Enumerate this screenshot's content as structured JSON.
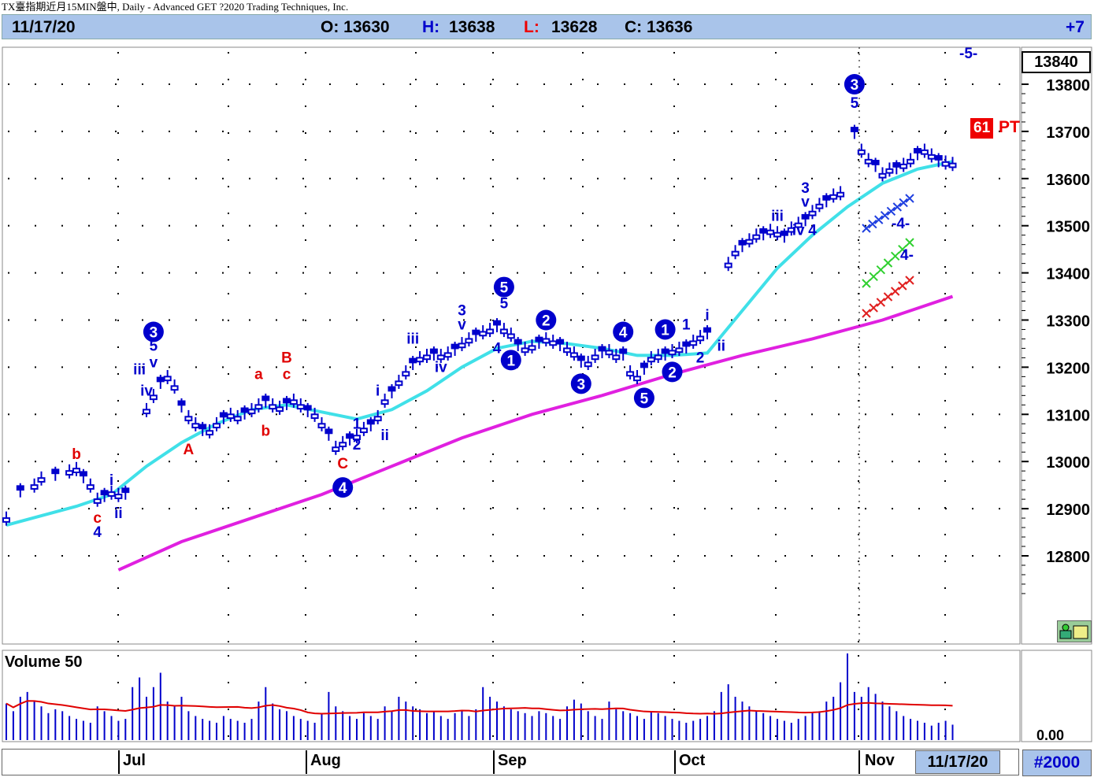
{
  "window": {
    "title": "TX臺指期近月15MIN盤中, Daily - Advanced GET ?2020 Trading Techniques, Inc."
  },
  "info_bar": {
    "date": "11/17/20",
    "open": "O: 13630",
    "high_label": "H:",
    "high": "13638",
    "low_label": "L:",
    "low": "13628",
    "close": "C: 13636",
    "change": "+7"
  },
  "price_axis": {
    "current_price": "13840",
    "ticks": [
      "13800",
      "13700",
      "13600",
      "13500",
      "13400",
      "13300",
      "13200",
      "13100",
      "13000",
      "12900",
      "12800"
    ]
  },
  "volume_panel": {
    "label": "Volume 50",
    "axis_label": "0.00"
  },
  "time_axis": {
    "months": [
      "Jul",
      "Aug",
      "Sep",
      "Oct",
      "Nov"
    ],
    "current_date": "11/17/20",
    "bars_count": "#2000"
  },
  "projection": {
    "pt_number": "61",
    "pt_label": "PT",
    "top_label": "-5-",
    "mid_label": "-4-",
    "mid2_label": "4-"
  },
  "colors": {
    "price_bars": "#0000cc",
    "ma_short": "#40e0e8",
    "ma_long": "#e020e0",
    "circle_labels": "#0000cc",
    "red_labels": "#e00000",
    "header_bg": "#a9c4ea",
    "volume_ma": "#e00000"
  },
  "chart_data": {
    "type": "line",
    "title": "",
    "ylim": [
      12750,
      13850
    ],
    "series": [
      {
        "kind": "ohlc",
        "points": [
          [
            0,
            12880
          ],
          [
            2,
            12940
          ],
          [
            4,
            12950
          ],
          [
            5,
            12965
          ],
          [
            7,
            12975
          ],
          [
            9,
            12980
          ],
          [
            10,
            12985
          ],
          [
            11,
            12970
          ],
          [
            12,
            12950
          ],
          [
            13,
            12920
          ],
          [
            14,
            12930
          ],
          [
            15,
            12935
          ],
          [
            16,
            12930
          ],
          [
            17,
            12935
          ],
          [
            20,
            13110
          ],
          [
            21,
            13140
          ],
          [
            22,
            13170
          ],
          [
            23,
            13180
          ],
          [
            24,
            13160
          ],
          [
            25,
            13120
          ],
          [
            26,
            13095
          ],
          [
            27,
            13080
          ],
          [
            28,
            13070
          ],
          [
            29,
            13065
          ],
          [
            30,
            13080
          ],
          [
            31,
            13095
          ],
          [
            32,
            13100
          ],
          [
            33,
            13095
          ],
          [
            34,
            13105
          ],
          [
            35,
            13110
          ],
          [
            36,
            13120
          ],
          [
            37,
            13130
          ],
          [
            38,
            13120
          ],
          [
            39,
            13115
          ],
          [
            40,
            13125
          ],
          [
            41,
            13130
          ],
          [
            42,
            13120
          ],
          [
            43,
            13110
          ],
          [
            44,
            13100
          ],
          [
            45,
            13080
          ],
          [
            46,
            13060
          ],
          [
            47,
            13030
          ],
          [
            48,
            13040
          ],
          [
            49,
            13050
          ],
          [
            50,
            13055
          ],
          [
            51,
            13070
          ],
          [
            52,
            13080
          ],
          [
            53,
            13095
          ],
          [
            54,
            13130
          ],
          [
            55,
            13150
          ],
          [
            56,
            13170
          ],
          [
            57,
            13190
          ],
          [
            58,
            13210
          ],
          [
            59,
            13220
          ],
          [
            60,
            13225
          ],
          [
            61,
            13230
          ],
          [
            62,
            13225
          ],
          [
            63,
            13230
          ],
          [
            64,
            13240
          ],
          [
            65,
            13250
          ],
          [
            66,
            13260
          ],
          [
            67,
            13270
          ],
          [
            68,
            13275
          ],
          [
            69,
            13280
          ],
          [
            70,
            13290
          ],
          [
            71,
            13280
          ],
          [
            72,
            13270
          ],
          [
            73,
            13250
          ],
          [
            74,
            13240
          ],
          [
            75,
            13245
          ],
          [
            76,
            13255
          ],
          [
            77,
            13260
          ],
          [
            78,
            13255
          ],
          [
            79,
            13250
          ],
          [
            80,
            13240
          ],
          [
            81,
            13230
          ],
          [
            82,
            13215
          ],
          [
            83,
            13210
          ],
          [
            84,
            13225
          ],
          [
            85,
            13235
          ],
          [
            86,
            13235
          ],
          [
            87,
            13225
          ],
          [
            88,
            13230
          ],
          [
            89,
            13190
          ],
          [
            90,
            13180
          ],
          [
            91,
            13200
          ],
          [
            92,
            13220
          ],
          [
            93,
            13225
          ],
          [
            94,
            13230
          ],
          [
            95,
            13235
          ],
          [
            96,
            13240
          ],
          [
            97,
            13245
          ],
          [
            98,
            13255
          ],
          [
            99,
            13265
          ],
          [
            100,
            13275
          ],
          [
            103,
            13420
          ],
          [
            104,
            13445
          ],
          [
            105,
            13460
          ],
          [
            106,
            13470
          ],
          [
            107,
            13480
          ],
          [
            108,
            13485
          ],
          [
            109,
            13490
          ],
          [
            110,
            13485
          ],
          [
            111,
            13480
          ],
          [
            112,
            13495
          ],
          [
            113,
            13505
          ],
          [
            114,
            13515
          ],
          [
            115,
            13530
          ],
          [
            116,
            13545
          ],
          [
            117,
            13555
          ],
          [
            118,
            13565
          ],
          [
            119,
            13570
          ],
          [
            121,
            13700
          ],
          [
            122,
            13660
          ],
          [
            123,
            13640
          ],
          [
            124,
            13630
          ],
          [
            125,
            13610
          ],
          [
            126,
            13620
          ],
          [
            127,
            13625
          ],
          [
            128,
            13630
          ],
          [
            129,
            13640
          ],
          [
            130,
            13655
          ],
          [
            131,
            13660
          ],
          [
            132,
            13650
          ],
          [
            133,
            13640
          ],
          [
            134,
            13635
          ],
          [
            135,
            13632
          ]
        ]
      },
      {
        "name": "",
        "kind": "ma_short",
        "points": [
          [
            0,
            12865
          ],
          [
            10,
            12905
          ],
          [
            15,
            12930
          ],
          [
            20,
            12990
          ],
          [
            25,
            13040
          ],
          [
            30,
            13080
          ],
          [
            35,
            13110
          ],
          [
            40,
            13120
          ],
          [
            45,
            13105
          ],
          [
            50,
            13090
          ],
          [
            55,
            13110
          ],
          [
            60,
            13150
          ],
          [
            65,
            13200
          ],
          [
            70,
            13240
          ],
          [
            75,
            13255
          ],
          [
            80,
            13250
          ],
          [
            85,
            13240
          ],
          [
            90,
            13225
          ],
          [
            95,
            13225
          ],
          [
            100,
            13230
          ],
          [
            105,
            13320
          ],
          [
            110,
            13410
          ],
          [
            115,
            13480
          ],
          [
            120,
            13540
          ],
          [
            125,
            13590
          ],
          [
            130,
            13620
          ],
          [
            135,
            13636
          ]
        ]
      },
      {
        "name": "",
        "kind": "ma_long",
        "points": [
          [
            16,
            12770
          ],
          [
            25,
            12830
          ],
          [
            35,
            12880
          ],
          [
            45,
            12930
          ],
          [
            55,
            12990
          ],
          [
            65,
            13050
          ],
          [
            75,
            13100
          ],
          [
            85,
            13140
          ],
          [
            95,
            13185
          ],
          [
            105,
            13225
          ],
          [
            115,
            13260
          ],
          [
            125,
            13300
          ],
          [
            135,
            13350
          ]
        ]
      }
    ],
    "wave_labels_circled": [
      {
        "text": "3",
        "x": 21,
        "y": 13275
      },
      {
        "text": "4",
        "x": 48,
        "y": 12945
      },
      {
        "text": "5",
        "x": 71,
        "y": 13370
      },
      {
        "text": "1",
        "x": 72,
        "y": 13215
      },
      {
        "text": "2",
        "x": 77,
        "y": 13300
      },
      {
        "text": "3",
        "x": 82,
        "y": 13165
      },
      {
        "text": "4",
        "x": 88,
        "y": 13275
      },
      {
        "text": "5",
        "x": 91,
        "y": 13135
      },
      {
        "text": "1",
        "x": 94,
        "y": 13280
      },
      {
        "text": "2",
        "x": 95,
        "y": 13190
      },
      {
        "text": "3",
        "x": 121,
        "y": 13800
      }
    ],
    "wave_labels_text": [
      {
        "text": "5",
        "x": 21,
        "y": 13235,
        "color": "blue"
      },
      {
        "text": "iii",
        "x": 19,
        "y": 13185,
        "color": "blue"
      },
      {
        "text": "v",
        "x": 21,
        "y": 13200,
        "color": "blue"
      },
      {
        "text": "iv",
        "x": 20,
        "y": 13140,
        "color": "blue"
      },
      {
        "text": "b",
        "x": 10,
        "y": 13005,
        "color": "red"
      },
      {
        "text": "i",
        "x": 15,
        "y": 12950,
        "color": "blue"
      },
      {
        "text": "ii",
        "x": 16,
        "y": 12880,
        "color": "blue"
      },
      {
        "text": "c",
        "x": 13,
        "y": 12870,
        "color": "red"
      },
      {
        "text": "4",
        "x": 13,
        "y": 12840,
        "color": "blue"
      },
      {
        "text": "A",
        "x": 26,
        "y": 13015,
        "color": "red"
      },
      {
        "text": "a",
        "x": 36,
        "y": 13175,
        "color": "red"
      },
      {
        "text": "b",
        "x": 37,
        "y": 13055,
        "color": "red"
      },
      {
        "text": "B",
        "x": 40,
        "y": 13210,
        "color": "red"
      },
      {
        "text": "c",
        "x": 40,
        "y": 13175,
        "color": "red"
      },
      {
        "text": "C",
        "x": 48,
        "y": 12985,
        "color": "red"
      },
      {
        "text": "1",
        "x": 50,
        "y": 13070,
        "color": "blue"
      },
      {
        "text": "2",
        "x": 50,
        "y": 13025,
        "color": "blue"
      },
      {
        "text": "i",
        "x": 53,
        "y": 13140,
        "color": "blue"
      },
      {
        "text": "ii",
        "x": 54,
        "y": 13045,
        "color": "blue"
      },
      {
        "text": "iii",
        "x": 58,
        "y": 13250,
        "color": "blue"
      },
      {
        "text": "iv",
        "x": 62,
        "y": 13190,
        "color": "blue"
      },
      {
        "text": "3",
        "x": 65,
        "y": 13310,
        "color": "blue"
      },
      {
        "text": "v",
        "x": 65,
        "y": 13280,
        "color": "blue"
      },
      {
        "text": "5",
        "x": 71,
        "y": 13325,
        "color": "blue"
      },
      {
        "text": "4",
        "x": 70,
        "y": 13230,
        "color": "blue"
      },
      {
        "text": "1",
        "x": 97,
        "y": 13280,
        "color": "blue"
      },
      {
        "text": "2",
        "x": 99,
        "y": 13210,
        "color": "blue"
      },
      {
        "text": "i",
        "x": 100,
        "y": 13300,
        "color": "blue"
      },
      {
        "text": "ii",
        "x": 102,
        "y": 13235,
        "color": "blue"
      },
      {
        "text": "iii",
        "x": 110,
        "y": 13510,
        "color": "blue"
      },
      {
        "text": "iv",
        "x": 113,
        "y": 13480,
        "color": "blue"
      },
      {
        "text": "4",
        "x": 115,
        "y": 13480,
        "color": "blue"
      },
      {
        "text": "3",
        "x": 114,
        "y": 13570,
        "color": "blue"
      },
      {
        "text": "v",
        "x": 114,
        "y": 13540,
        "color": "blue"
      },
      {
        "text": "5",
        "x": 121,
        "y": 13750,
        "color": "blue"
      }
    ],
    "volume": [
      38,
      30,
      45,
      50,
      40,
      35,
      28,
      32,
      30,
      25,
      22,
      20,
      18,
      35,
      30,
      25,
      20,
      22,
      55,
      65,
      45,
      55,
      70,
      40,
      35,
      45,
      30,
      25,
      22,
      20,
      18,
      25,
      22,
      20,
      18,
      22,
      40,
      55,
      38,
      32,
      30,
      25,
      22,
      20,
      18,
      28,
      50,
      35,
      30,
      25,
      22,
      28,
      25,
      22,
      35,
      30,
      45,
      40,
      35,
      32,
      28,
      30,
      25,
      22,
      28,
      30,
      25,
      32,
      55,
      45,
      40,
      35,
      32,
      30,
      28,
      25,
      30,
      28,
      25,
      22,
      35,
      42,
      38,
      30,
      25,
      22,
      40,
      32,
      30,
      28,
      25,
      22,
      30,
      28,
      25,
      22,
      20,
      18,
      20,
      22,
      25,
      30,
      50,
      58,
      45,
      40,
      35,
      30,
      28,
      25,
      22,
      20,
      18,
      22,
      25,
      28,
      30,
      40,
      45,
      60,
      90,
      50,
      45,
      55,
      48,
      40,
      35,
      30,
      25,
      22,
      20,
      18,
      15,
      18,
      20,
      16
    ]
  }
}
